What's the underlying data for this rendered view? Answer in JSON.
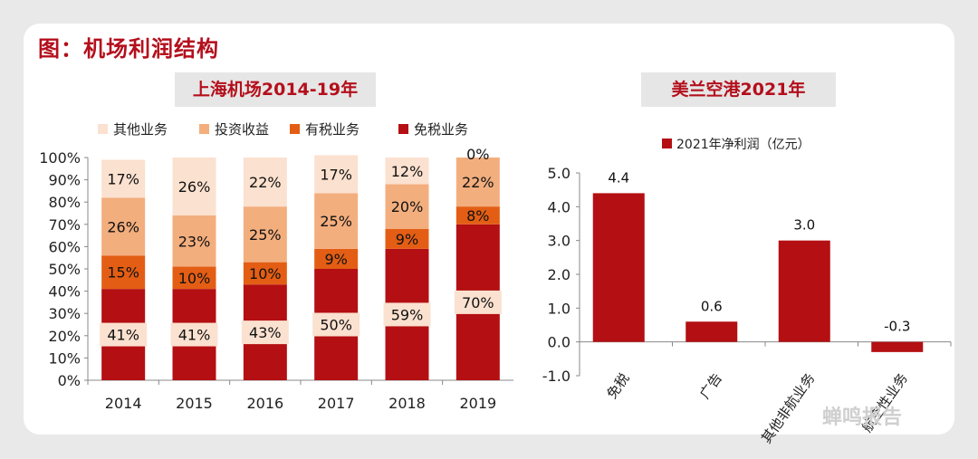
{
  "page": {
    "title": "图：机场利润结构",
    "watermark": "蝉鸣报告"
  },
  "chart_data": [
    {
      "type": "bar",
      "stacked": true,
      "title": "上海机场2014-19年",
      "categories": [
        "2014",
        "2015",
        "2016",
        "2017",
        "2018",
        "2019"
      ],
      "series": [
        {
          "name": "免税业务",
          "color": "#b40f12",
          "values": [
            41,
            41,
            43,
            50,
            59,
            70
          ],
          "labels": [
            "41%",
            "41%",
            "43%",
            "50%",
            "59%",
            "70%"
          ]
        },
        {
          "name": "有税业务",
          "color": "#e35e14",
          "values": [
            15,
            10,
            10,
            9,
            9,
            8
          ],
          "labels": [
            "15%",
            "10%",
            "10%",
            "9%",
            "9%",
            "8%"
          ]
        },
        {
          "name": "投资收益",
          "color": "#f3ae7e",
          "values": [
            26,
            23,
            25,
            25,
            20,
            22
          ],
          "labels": [
            "26%",
            "23%",
            "25%",
            "25%",
            "20%",
            "22%"
          ]
        },
        {
          "name": "其他业务",
          "color": "#fbe1cf",
          "values": [
            17,
            26,
            22,
            17,
            12,
            0
          ],
          "labels": [
            "17%",
            "26%",
            "22%",
            "17%",
            "12%",
            "0%"
          ]
        }
      ],
      "legend_order": [
        "其他业务",
        "投资收益",
        "有税业务",
        "免税业务"
      ],
      "legend": "top",
      "yticks": [
        "0%",
        "10%",
        "20%",
        "30%",
        "40%",
        "50%",
        "60%",
        "70%",
        "80%",
        "90%",
        "100%"
      ],
      "ylim": [
        0,
        100
      ]
    },
    {
      "type": "bar",
      "title": "美兰空港2021年",
      "categories": [
        "免税",
        "广告",
        "其他非航业务",
        "航空性业务"
      ],
      "series": [
        {
          "name": "2021年净利润（亿元）",
          "color": "#b40f12",
          "values": [
            4.4,
            0.6,
            3.0,
            -0.3
          ],
          "labels": [
            "4.4",
            "0.6",
            "3.0",
            "-0.3"
          ]
        }
      ],
      "legend": "top",
      "yticks": [
        "-1.0",
        "0.0",
        "1.0",
        "2.0",
        "3.0",
        "4.0",
        "5.0"
      ],
      "ylim": [
        -1,
        5
      ]
    }
  ]
}
